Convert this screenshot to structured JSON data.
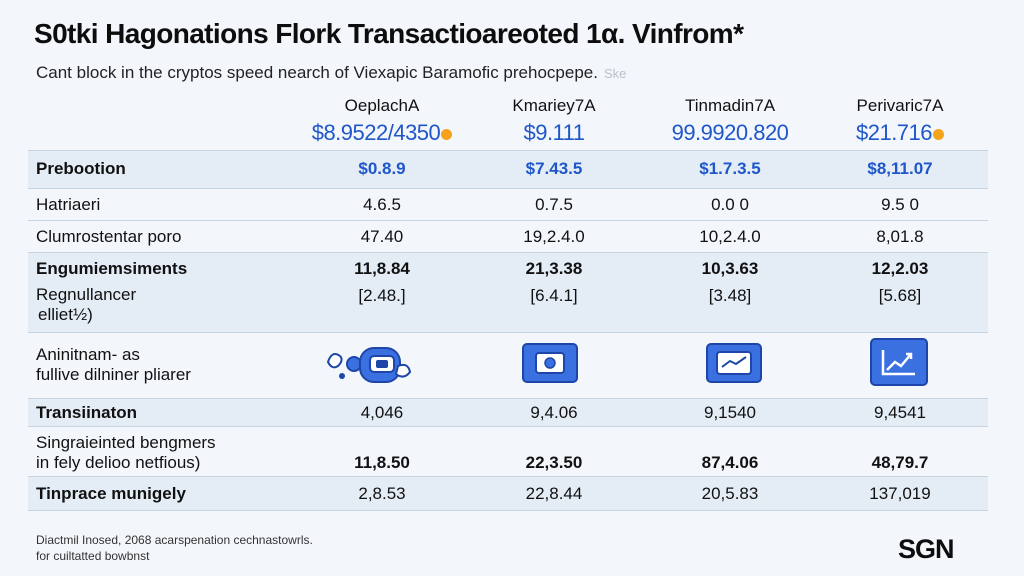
{
  "header": {
    "title": "S0tki Hagonations Flork Transactioareoted 1α. Vinfrom*",
    "subtitle": "Cant block in the cryptos speed nearch of Viexapic Baramofic prehocpepe.",
    "subtitle_faint": "Ske"
  },
  "columns": [
    {
      "name": "OeplachA",
      "price": "$8.9522/4350"
    },
    {
      "name": "Kmariey7A",
      "price": "$9.111"
    },
    {
      "name": "Tinmadin7A",
      "price": "99.9920.820"
    },
    {
      "name": "Perivaric7A",
      "price": "$21.716"
    }
  ],
  "rows": [
    {
      "label": "Prebootion",
      "values": [
        "$0.8.9",
        "$7.43.5",
        "$1.7.3.5",
        "$8,11.07"
      ]
    },
    {
      "label": "Hatriaeri",
      "values": [
        "4.6.5",
        "0.7.5",
        "0.0 0",
        "9.5 0"
      ]
    },
    {
      "label": "Clumrostentar poro",
      "values": [
        "47.40",
        "19,2.4.0",
        "10,2.4.0",
        "8,01.8"
      ]
    },
    {
      "label": "Engumiemsiments",
      "values": [
        "11,8.84",
        "21,3.38",
        "10,3.63",
        "12,2.03"
      ]
    },
    {
      "label_line1": "Regnullancer",
      "label_line2": "elliet½)",
      "values": [
        "[2.48.]",
        "[6.4.1]",
        "[3.48]",
        "[5.68]"
      ]
    },
    {
      "label_line1": "Aninitnam- as",
      "label_line2": "fullive dilniner pliarer"
    },
    {
      "label": "Transiinaton",
      "values": [
        "4,046",
        "9,4.06",
        "9,1540",
        "9,4541"
      ]
    },
    {
      "label_line1": "Singraieinted bengmers",
      "label_line2": "in fely delioo netfious)",
      "values": [
        "11,8.50",
        "22,3.50",
        "87,4.06",
        "48,79.7"
      ]
    },
    {
      "label": "Tinprace munigely",
      "values": [
        "2,8.53",
        "22,8.44",
        "20,5.83",
        "137,019"
      ]
    }
  ],
  "icons": [
    "robot-icon",
    "coin-card-icon",
    "chart-card-icon",
    "growth-chart-icon"
  ],
  "footnote": {
    "line1": "Diactmil Inosed, 2068 acarspenation cechnastowrls.",
    "line2": "for cuiltatted bowbnst"
  },
  "logo": "SGN",
  "colors": {
    "accent": "#1f56c9",
    "coin": "#f5a21c",
    "row_shade": "#e4ecf6"
  }
}
